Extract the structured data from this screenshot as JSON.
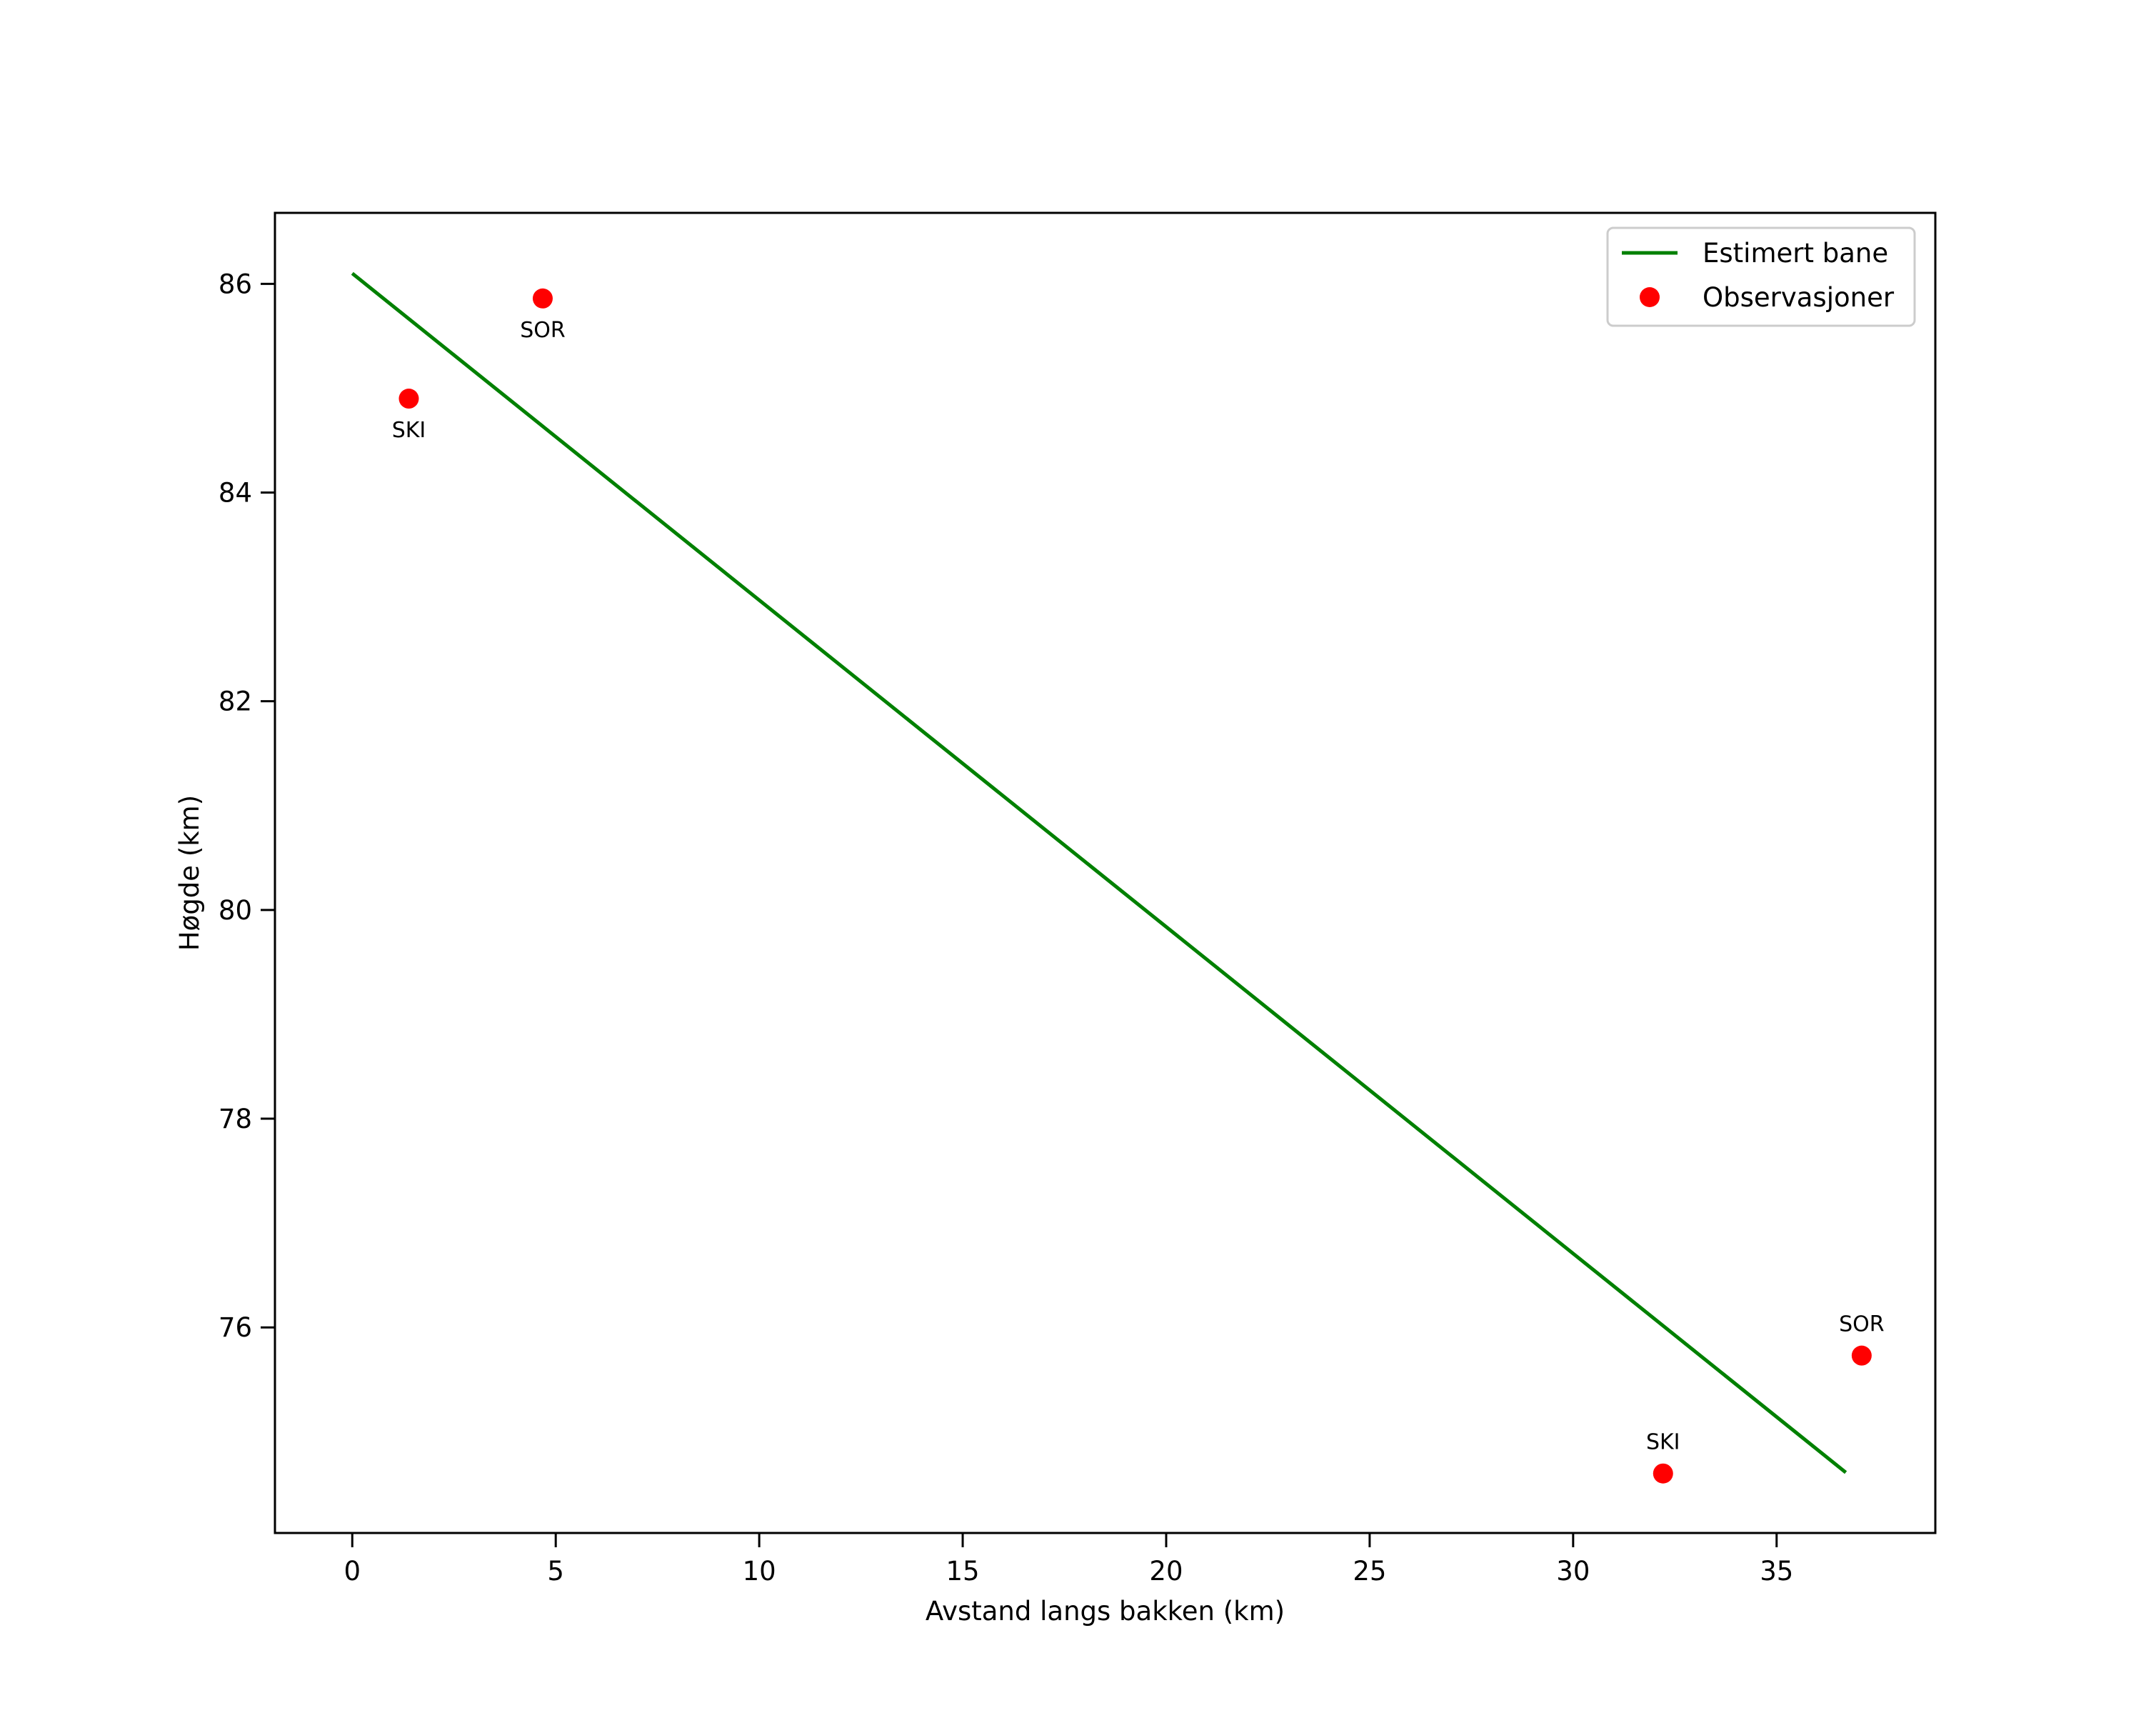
{
  "chart_data": {
    "type": "line",
    "title": "",
    "xlabel": "Avstand langs bakken (km)",
    "ylabel": "Høgde (km)",
    "xlim": [
      -1.9,
      38.9
    ],
    "ylim": [
      74.03,
      86.68
    ],
    "xticks": [
      0,
      5,
      10,
      15,
      20,
      25,
      30,
      35
    ],
    "yticks": [
      76,
      78,
      80,
      82,
      84,
      86
    ],
    "grid": false,
    "legend_position": "upper right",
    "series": [
      {
        "name": "Estimert bane",
        "kind": "line",
        "color": "#008000",
        "x": [
          0.0,
          36.7
        ],
        "y": [
          86.1,
          74.61
        ]
      },
      {
        "name": "Observasjoner",
        "kind": "scatter",
        "color": "#ff0000",
        "points": [
          {
            "x": 1.39,
            "y": 84.9,
            "label": "SKI",
            "label_pos": "below"
          },
          {
            "x": 4.68,
            "y": 85.86,
            "label": "SOR",
            "label_pos": "below"
          },
          {
            "x": 32.21,
            "y": 74.6,
            "label": "SKI",
            "label_pos": "above"
          },
          {
            "x": 37.09,
            "y": 75.73,
            "label": "SOR",
            "label_pos": "above"
          }
        ]
      }
    ]
  }
}
